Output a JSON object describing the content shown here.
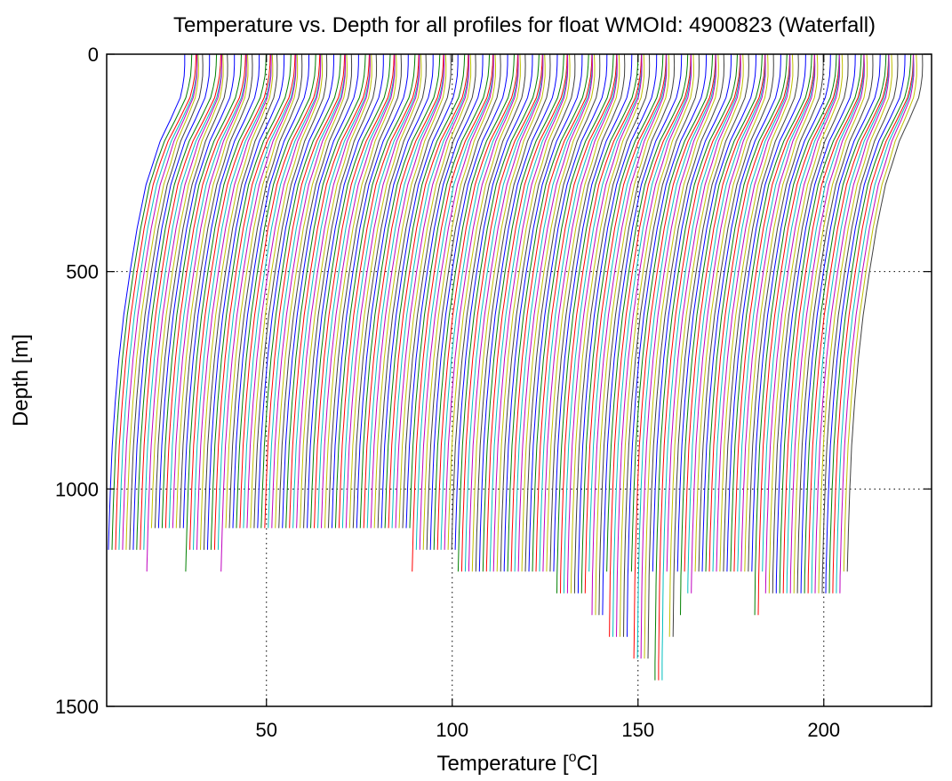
{
  "chart_data": {
    "type": "line",
    "title": "Temperature vs. Depth for all profiles for float WMOId: 4900823 (Waterfall)",
    "xlabel_prefix": "Temperature [",
    "xlabel_sup": "o",
    "xlabel_suffix": "C]",
    "ylabel": "Depth [m]",
    "xlim": [
      7,
      229
    ],
    "ylim": [
      0,
      1500
    ],
    "y_reversed": true,
    "grid": true,
    "xticks": [
      50,
      100,
      150,
      200
    ],
    "yticks": [
      0,
      500,
      1000,
      1500
    ],
    "colors": [
      "#0000ff",
      "#008000",
      "#ff0000",
      "#00bfbf",
      "#bf00bf",
      "#bfbf00",
      "#404040"
    ],
    "series_count": 210,
    "profile_shape": {
      "depth": [
        0,
        30,
        60,
        100,
        150,
        200,
        300,
        400,
        500,
        600,
        700,
        800,
        900,
        1000,
        1100,
        1200,
        1300,
        1400
      ],
      "temperature_anomaly": [
        21.0,
        21.0,
        20.8,
        19.8,
        17.2,
        14.4,
        10.6,
        8.2,
        6.3,
        4.6,
        3.3,
        2.3,
        1.5,
        1.0,
        0.6,
        0.3,
        0.15,
        0.0
      ]
    },
    "profile_offsets": {
      "first_surface_temperature": 28,
      "last_surface_temperature": 227,
      "x_step_per_profile": 0.95
    },
    "max_depth_groups": [
      {
        "from_x": 7,
        "to_x": 17,
        "depth": 1140
      },
      {
        "from_x": 18,
        "to_x": 27,
        "depth": 1090
      },
      {
        "from_x": 28,
        "to_x": 37,
        "depth": 1140
      },
      {
        "from_x": 38,
        "to_x": 88,
        "depth": 1090
      },
      {
        "from_x": 89,
        "to_x": 101,
        "depth": 1140
      },
      {
        "from_x": 102,
        "to_x": 126,
        "depth": 1190
      },
      {
        "from_x": 127,
        "to_x": 136,
        "depth": 1240
      },
      {
        "from_x": 137,
        "to_x": 141,
        "depth": 1290
      },
      {
        "from_x": 142,
        "to_x": 147,
        "depth": 1340
      },
      {
        "from_x": 148,
        "to_x": 153,
        "depth": 1390
      },
      {
        "from_x": 154,
        "to_x": 157,
        "depth": 1440
      },
      {
        "from_x": 158,
        "to_x": 160,
        "depth": 1340
      },
      {
        "from_x": 161,
        "to_x": 162,
        "depth": 1290
      },
      {
        "from_x": 163,
        "to_x": 165,
        "depth": 1240
      },
      {
        "from_x": 166,
        "to_x": 180,
        "depth": 1190
      },
      {
        "from_x": 181,
        "to_x": 183,
        "depth": 1290
      },
      {
        "from_x": 184,
        "to_x": 205,
        "depth": 1240
      }
    ]
  }
}
